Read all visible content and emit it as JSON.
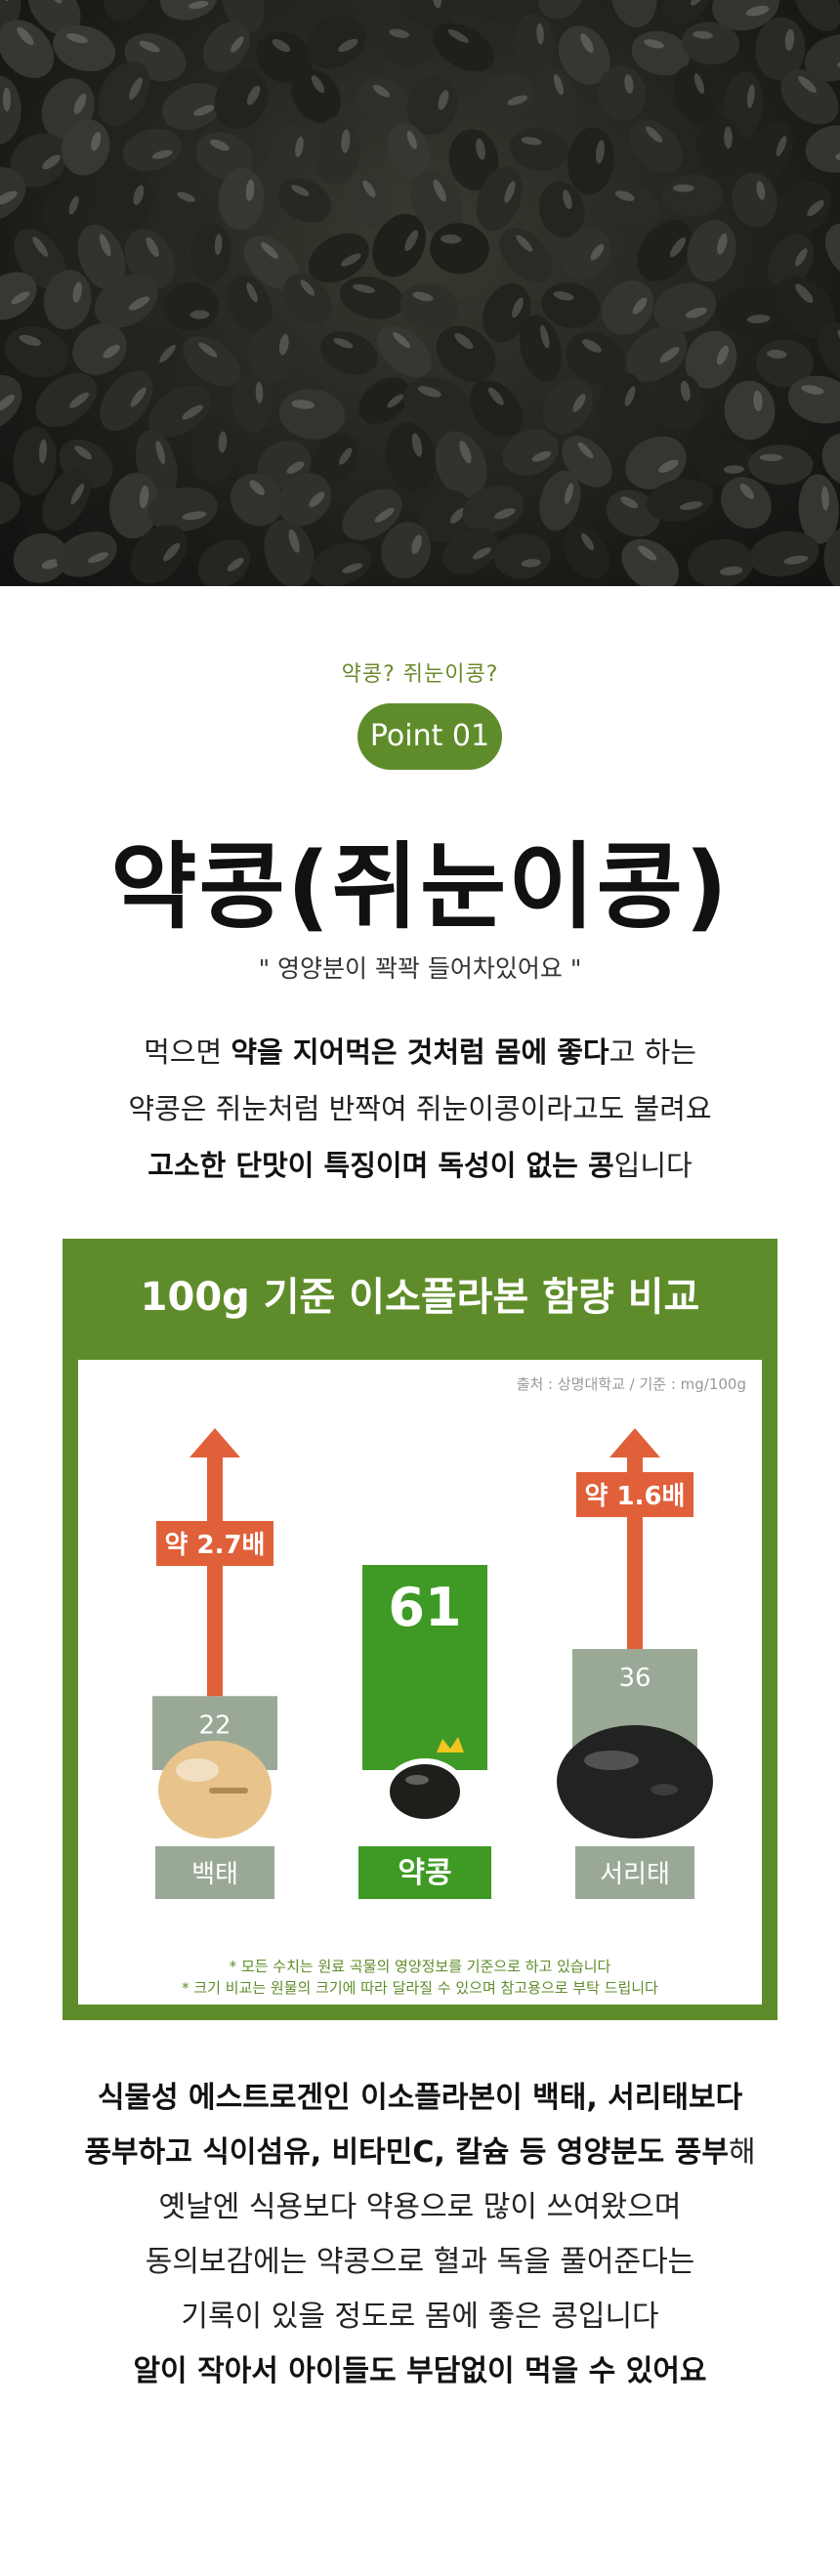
{
  "kicker": "약콩? 쥐눈이콩?",
  "badge": "Point 01",
  "title": "약콩(쥐눈이콩)",
  "subtitle": "\" 영양분이 꽉꽉 들어차있어요 \"",
  "intro": {
    "line1": {
      "a": "먹으면 ",
      "b": "약을 지어먹은 것처럼 몸에 좋다",
      "c": "고 하는"
    },
    "line2": "약콩은 쥐눈처럼 반짝여 쥐눈이콩이라고도 불려요",
    "line3": {
      "a": "고소한 단맛이 특징이며 독성이 없는 콩",
      "b": "입니다"
    }
  },
  "chart": {
    "heading": "100g 기준 이소플라본 함량 비교",
    "source": "출처 : 상명대학교 / 기준 : mg/100g",
    "notes": [
      "* 모든 수치는 원료 곡물의 영양정보를 기준으로 하고 있습니다",
      "* 크기 비교는 원물의 크기에 따라 달라질 수 있으며 참고용으로 부탁 드립니다"
    ],
    "colors": {
      "green": "#3f9a25",
      "gray": "#9aa896",
      "arrow": "#e0603a",
      "brand": "#5f8c2a"
    }
  },
  "chart_data": {
    "type": "bar",
    "title": "100g 기준 이소플라본 함량 비교",
    "categories": [
      "백태",
      "약콩",
      "서리태"
    ],
    "values": [
      22,
      61,
      36
    ],
    "unit": "mg/100g",
    "multipliers": [
      "약 2.7배",
      "",
      "약 1.6배"
    ],
    "highlight": "약콩"
  },
  "bottom": {
    "line1": "식물성 에스트로겐인 이소플라본이 백태, 서리태보다",
    "line2": {
      "a": "풍부하고 식이섬유, 비타민C, 칼슘 등 영양분도 풍부",
      "b": "해"
    },
    "line3": "옛날엔 식용보다 약용으로 많이 쓰여왔으며",
    "line4": "동의보감에는 약콩으로 혈과 독을 풀어준다는",
    "line5": "기록이 있을 정도로 몸에 좋은 콩입니다",
    "line6": "알이 작아서 아이들도 부담없이 먹을 수 있어요"
  }
}
